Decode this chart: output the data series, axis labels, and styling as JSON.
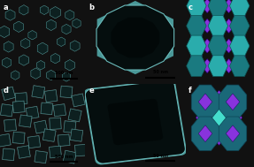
{
  "panel_labels": [
    "a",
    "b",
    "c",
    "d",
    "e",
    "f"
  ],
  "tem_bg": "#5aacaa",
  "tem_particle": "#0d2020",
  "tem_particle_edge": "#3a8888",
  "single_bg": "#3a7878",
  "single_particle": "#081818",
  "single_edge": "#5aacac",
  "c_bg": "#aadddd",
  "c_hex_dark": "#1a7a80",
  "c_hex_mid": "#2aacac",
  "c_hex_light": "#44cccc",
  "c_purple": "#8833dd",
  "f_bg": "#aadddd",
  "f_oct_dark": "#1a6878",
  "f_oct_mid": "#2aacac",
  "f_purple": "#8833dd",
  "f_cyan": "#44ddcc"
}
